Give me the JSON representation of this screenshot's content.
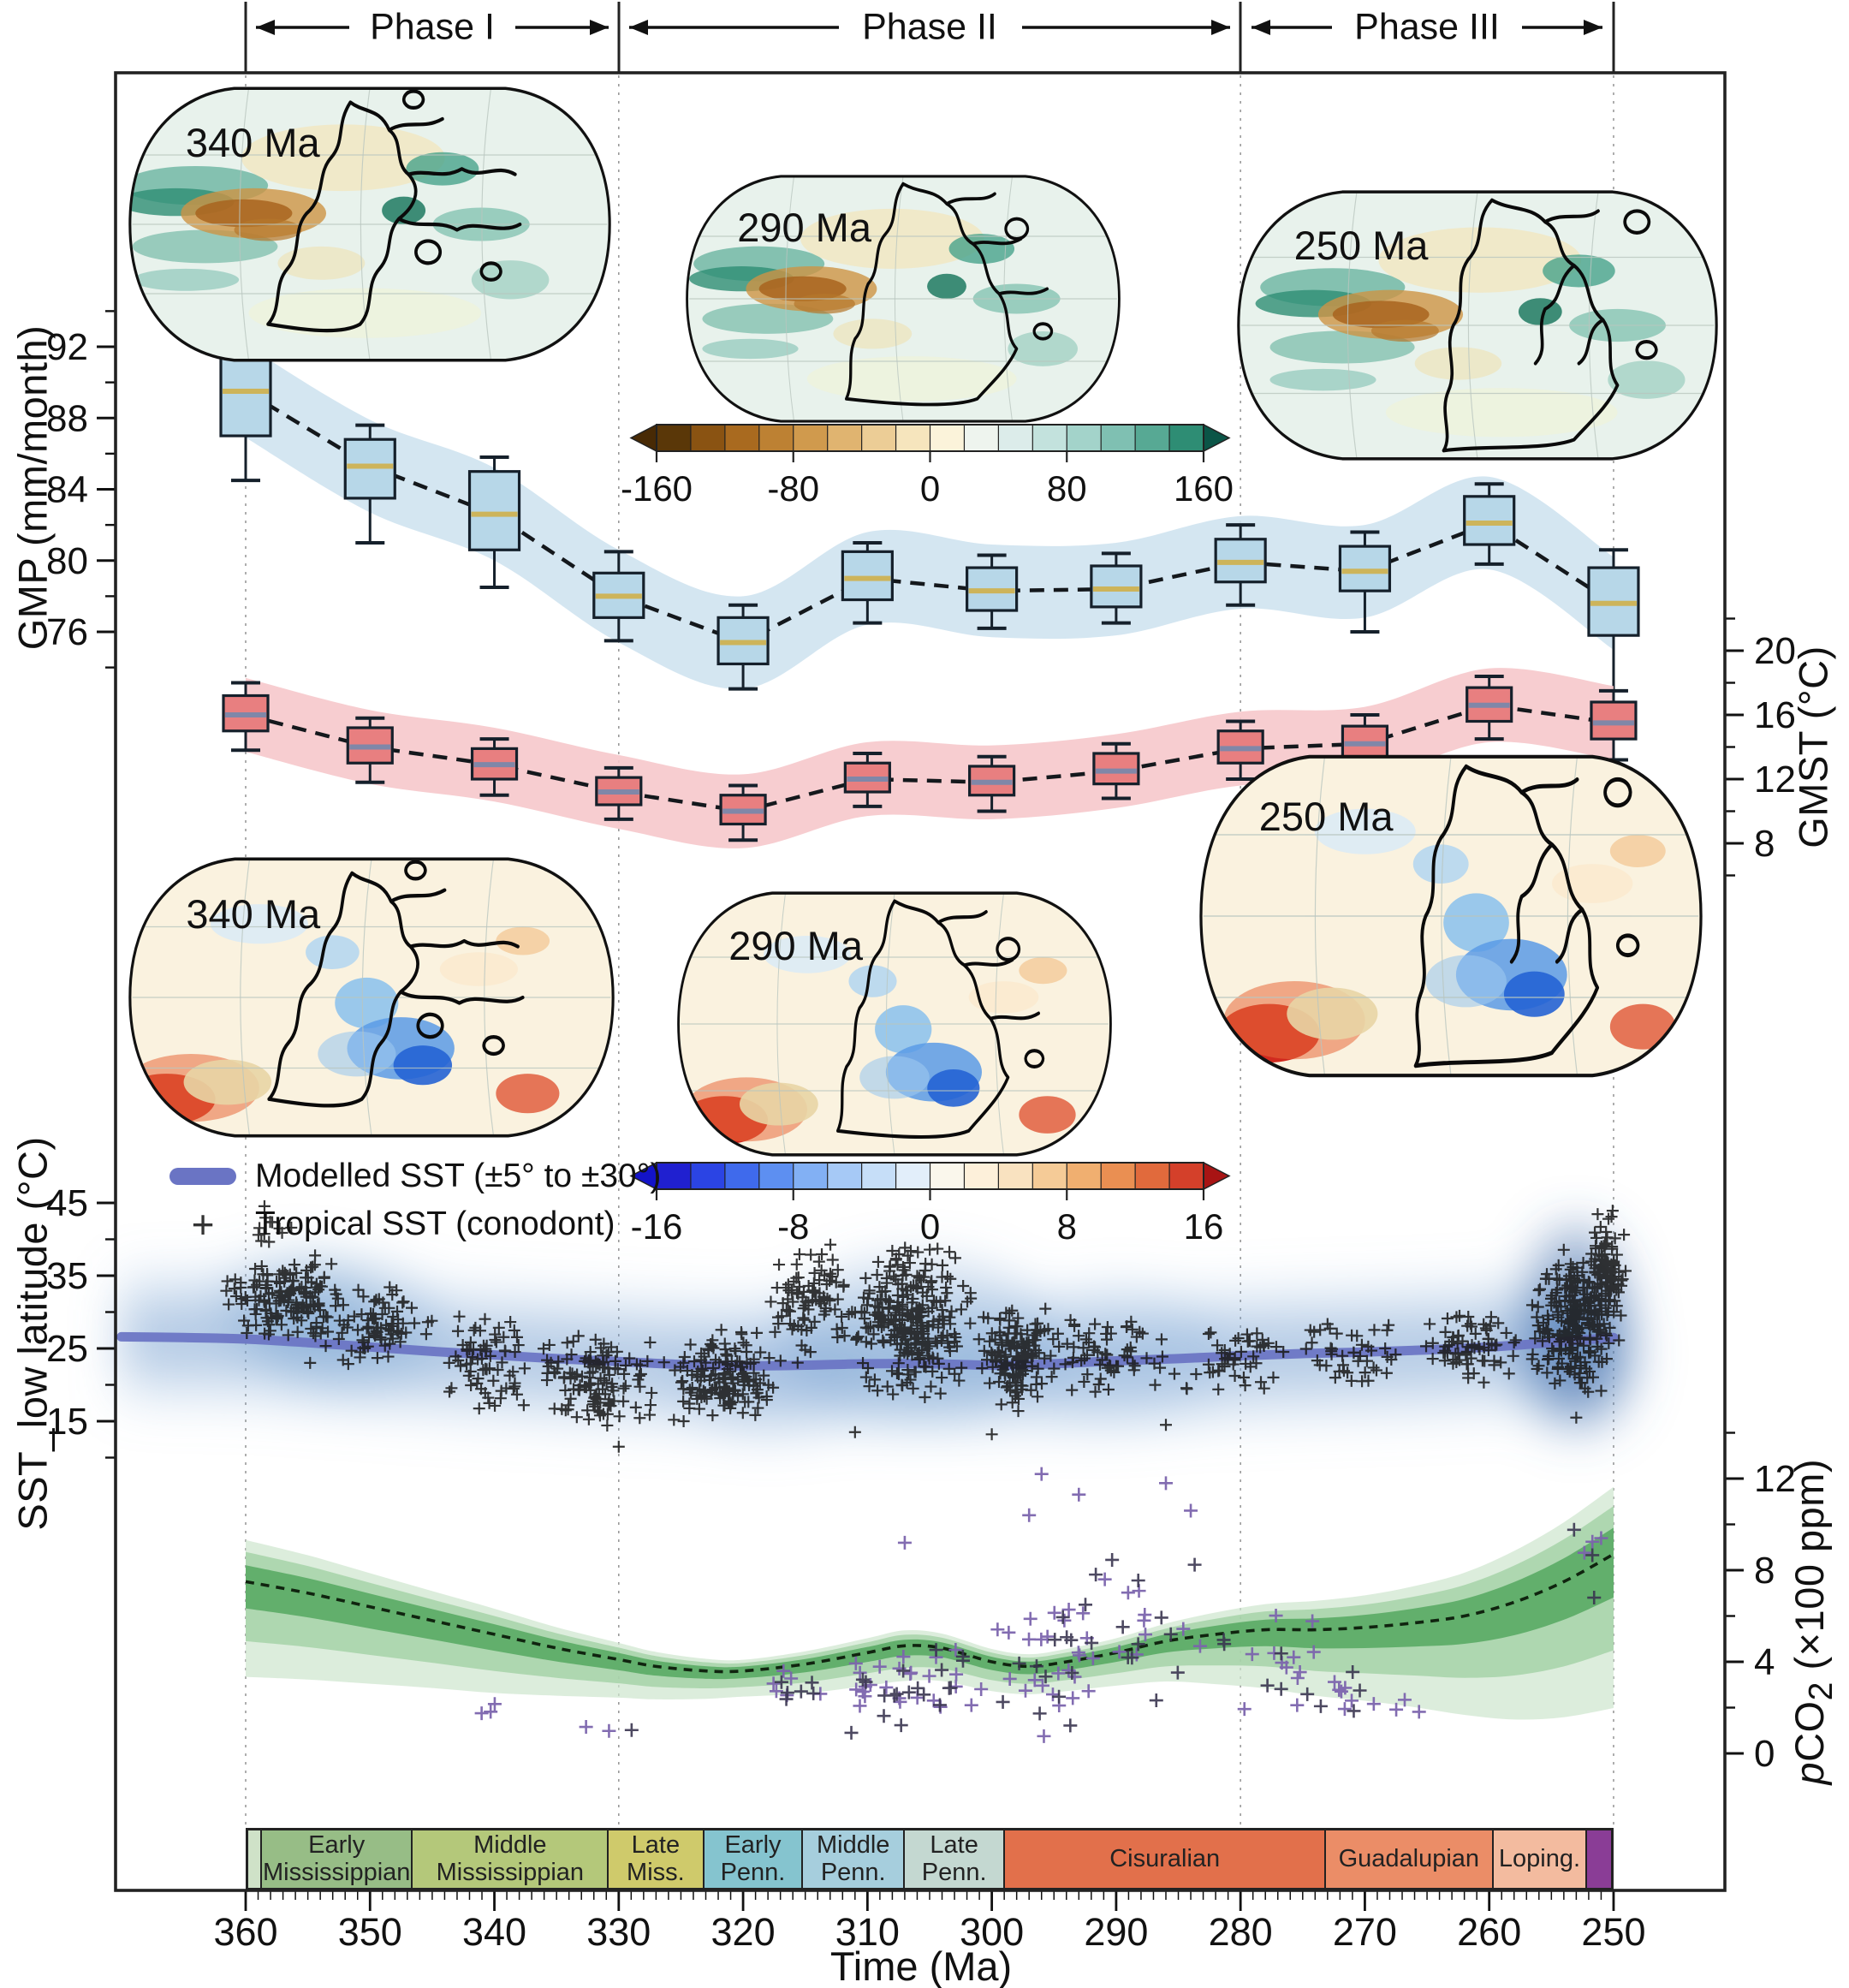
{
  "phases": {
    "labels": [
      "Phase I",
      "Phase II",
      "Phase III"
    ],
    "boundaries_ma": [
      360,
      330,
      280,
      250
    ]
  },
  "axes": {
    "gmp": {
      "title": "GMP (mm/month)",
      "ticks": [
        92,
        88,
        84,
        80,
        76
      ],
      "minor": [
        94,
        90,
        86,
        82,
        78,
        74
      ]
    },
    "gmst": {
      "title": "GMST (°C)",
      "ticks": [
        20,
        16,
        12,
        8
      ],
      "minor": [
        22,
        18,
        14,
        10,
        6
      ]
    },
    "sst": {
      "title": "SST_low latitude (°C)",
      "ticks": [
        45,
        35,
        25,
        15
      ],
      "minor": [
        40,
        30,
        20,
        10
      ]
    },
    "pco2": {
      "t_p": "p",
      "t_main": "CO",
      "t_sub": "2",
      "t_suffix": " (×100 ppm)",
      "ticks": [
        12,
        8,
        4,
        0
      ],
      "minor": [
        14,
        10,
        6,
        2
      ]
    },
    "time": {
      "title": "Time (Ma)",
      "ticks": [
        360,
        350,
        340,
        330,
        320,
        310,
        300,
        290,
        280,
        270,
        260,
        250
      ]
    }
  },
  "legend": {
    "modelled": "Modelled SST (±5° to ±30°)",
    "conodont": "Tropical SST (conodont)",
    "plus": "+"
  },
  "colorbars": {
    "precip": {
      "ticks": [
        "-160",
        "-80",
        "0",
        "80",
        "160"
      ],
      "colors": [
        "#5a3708",
        "#8a5312",
        "#a96a1f",
        "#bd8133",
        "#d09a4d",
        "#e0b470",
        "#eccd96",
        "#f6e5bd",
        "#fbf3da",
        "#eef4ee",
        "#dcecea",
        "#c3e2dd",
        "#a3d3ca",
        "#7fc0b2",
        "#57a994",
        "#2e8d74"
      ],
      "arrow_left": "#482a05",
      "arrow_right": "#0b5547"
    },
    "sst": {
      "ticks": [
        "-16",
        "-8",
        "0",
        "8",
        "16"
      ],
      "colors": [
        "#2020d0",
        "#2b44e4",
        "#3f6aec",
        "#5d8ff1",
        "#82b0f4",
        "#a6c9f6",
        "#c6def8",
        "#e2eefa",
        "#faf7ec",
        "#fdf0da",
        "#f9e2c0",
        "#f5cb97",
        "#f0af70",
        "#ea8f52",
        "#e16a3c",
        "#d4402a"
      ],
      "arrow_left": "#1313c8",
      "arrow_right": "#a81414"
    }
  },
  "maps": {
    "precip": [
      {
        "label": "340 Ma"
      },
      {
        "label": "290 Ma"
      },
      {
        "label": "250 Ma"
      }
    ],
    "sst": [
      {
        "label": "340 Ma"
      },
      {
        "label": "290 Ma"
      },
      {
        "label": "250 Ma"
      }
    ]
  },
  "timescale": [
    {
      "l1": "",
      "l2": "",
      "t0": 360.0,
      "t1": 358.9,
      "color": "#cfe2c8"
    },
    {
      "l1": "Early",
      "l2": "Mississippian",
      "t0": 358.9,
      "t1": 346.7,
      "color": "#97bd86"
    },
    {
      "l1": "Middle",
      "l2": "Mississippian",
      "t0": 346.7,
      "t1": 330.9,
      "color": "#b4c87a"
    },
    {
      "l1": "Late",
      "l2": "Miss.",
      "t0": 330.9,
      "t1": 323.2,
      "color": "#cfca6b"
    },
    {
      "l1": "Early",
      "l2": "Penn.",
      "t0": 323.2,
      "t1": 315.2,
      "color": "#85c4cf"
    },
    {
      "l1": "Middle",
      "l2": "Penn.",
      "t0": 315.2,
      "t1": 307.0,
      "color": "#a6cedd"
    },
    {
      "l1": "Late",
      "l2": "Penn.",
      "t0": 307.0,
      "t1": 298.9,
      "color": "#c4d8d1"
    },
    {
      "l1": "Cisuralian",
      "l2": "",
      "t0": 298.9,
      "t1": 273.0,
      "color": "#e2704b"
    },
    {
      "l1": "Guadalupian",
      "l2": "",
      "t0": 273.0,
      "t1": 259.5,
      "color": "#eb8d67"
    },
    {
      "l1": "Loping.",
      "l2": "",
      "t0": 259.5,
      "t1": 251.9,
      "color": "#f3bb9f"
    },
    {
      "l1": "",
      "l2": "",
      "t0": 251.9,
      "t1": 250.0,
      "color": "#8a3d96"
    }
  ],
  "chart_data": {
    "type": [
      "box",
      "line",
      "scatter",
      "area"
    ],
    "x_axis": {
      "label": "Time (Ma)",
      "range": [
        360,
        250
      ],
      "direction": "decreasing"
    },
    "gmp_boxes": {
      "ylabel": "GMP (mm/month)",
      "ylim": [
        73,
        94
      ],
      "categories_ma": [
        360,
        350,
        340,
        330,
        320,
        310,
        300,
        290,
        280,
        270,
        260,
        250
      ],
      "lo": [
        84.5,
        81.0,
        78.5,
        75.5,
        72.8,
        76.5,
        76.2,
        76.5,
        77.5,
        76.0,
        79.8,
        71.5
      ],
      "q1": [
        87.0,
        83.5,
        80.6,
        76.8,
        74.2,
        77.8,
        77.2,
        77.4,
        78.8,
        78.3,
        80.9,
        75.8
      ],
      "med": [
        89.5,
        85.3,
        82.6,
        78.0,
        75.4,
        79.0,
        78.3,
        78.4,
        79.9,
        79.4,
        82.1,
        77.6
      ],
      "q3": [
        91.7,
        86.8,
        85.0,
        79.3,
        76.8,
        80.5,
        79.6,
        79.7,
        81.2,
        80.8,
        83.6,
        79.6
      ],
      "hi": [
        93.2,
        87.6,
        85.8,
        80.5,
        77.5,
        81.0,
        80.3,
        80.4,
        82.0,
        81.6,
        84.3,
        80.6
      ],
      "band_halfwidth": 2.6,
      "box_color": "#b7d7e8",
      "band_color": "#cfe3ef",
      "median_color": "#cdb45a"
    },
    "gmst_boxes": {
      "ylabel": "GMST (°C)",
      "ylim": [
        6,
        22
      ],
      "categories_ma": [
        360,
        350,
        340,
        330,
        320,
        310,
        300,
        290,
        280,
        270,
        260,
        250
      ],
      "lo": [
        13.8,
        11.8,
        11.0,
        9.5,
        8.2,
        10.3,
        10.0,
        10.8,
        12.0,
        12.4,
        14.5,
        13.2
      ],
      "q1": [
        15.0,
        13.0,
        12.0,
        10.4,
        9.2,
        11.2,
        11.0,
        11.7,
        13.0,
        13.4,
        15.6,
        14.5
      ],
      "med": [
        16.0,
        14.0,
        12.9,
        11.2,
        10.0,
        12.0,
        11.8,
        12.5,
        13.9,
        14.2,
        16.6,
        15.5
      ],
      "q3": [
        17.2,
        15.2,
        13.9,
        12.1,
        11.0,
        13.0,
        12.8,
        13.6,
        15.0,
        15.3,
        17.7,
        16.8
      ],
      "hi": [
        18.0,
        15.8,
        14.5,
        12.7,
        11.6,
        13.6,
        13.4,
        14.2,
        15.6,
        16.0,
        18.4,
        17.5
      ],
      "band_halfwidth": 2.3,
      "box_color": "#e87f80",
      "band_color": "#f6c8cb",
      "median_color": "#8087a8"
    },
    "modelled_sst": {
      "ylabel": "SST_low latitude (°C)",
      "ylim": [
        8,
        48
      ],
      "color": "#6a74c4",
      "x_ma": [
        370,
        365,
        360,
        355,
        350,
        345,
        340,
        335,
        330,
        325,
        320,
        315,
        310,
        305,
        300,
        295,
        290,
        285,
        280,
        275,
        270,
        265,
        260,
        255,
        250
      ],
      "y_c": [
        26.6,
        26.5,
        26.3,
        25.8,
        25.2,
        24.6,
        24.1,
        23.6,
        23.2,
        22.8,
        22.6,
        22.7,
        22.9,
        22.9,
        22.7,
        22.9,
        23.3,
        23.6,
        24.0,
        24.3,
        24.5,
        24.8,
        25.2,
        25.8,
        26.5
      ]
    },
    "conodont_sst_clusters": [
      [
        362,
        352,
        26,
        38,
        150
      ],
      [
        361,
        356,
        38,
        45,
        12
      ],
      [
        356,
        344,
        22,
        34,
        90
      ],
      [
        344,
        337,
        16,
        30,
        70
      ],
      [
        337,
        326,
        14,
        27,
        130
      ],
      [
        326,
        317,
        14,
        28,
        150
      ],
      [
        318,
        311,
        22,
        40,
        90
      ],
      [
        312,
        301,
        17,
        40,
        280
      ],
      [
        301,
        295,
        16,
        31,
        140
      ],
      [
        296,
        285,
        18,
        31,
        70
      ],
      [
        285,
        276,
        18,
        28,
        50
      ],
      [
        276,
        266,
        19,
        29,
        45
      ],
      [
        266,
        257,
        20,
        31,
        70
      ],
      [
        257,
        249,
        18,
        40,
        240
      ],
      [
        252,
        249,
        26,
        44,
        90
      ]
    ],
    "conodont_singles": [
      [
        330,
        11.5
      ],
      [
        311,
        13.5
      ],
      [
        300,
        13.2
      ],
      [
        286,
        14.5
      ],
      [
        253,
        15.5
      ]
    ],
    "pco2_curve": {
      "ylabel": "pCO2 (×100 ppm)",
      "ylim": [
        0,
        14
      ],
      "color": "#173a1c",
      "x_ma": [
        360,
        355,
        350,
        345,
        340,
        335,
        330,
        327,
        323,
        320,
        315,
        310,
        307,
        304,
        300,
        297,
        294,
        290,
        286,
        282,
        278,
        274,
        270,
        266,
        262,
        258,
        254,
        250
      ],
      "y": [
        7.5,
        7.0,
        6.4,
        5.8,
        5.2,
        4.6,
        4.1,
        3.8,
        3.6,
        3.6,
        3.9,
        4.4,
        4.7,
        4.6,
        4.0,
        3.8,
        4.0,
        4.4,
        4.9,
        5.2,
        5.4,
        5.4,
        5.5,
        5.7,
        6.0,
        6.6,
        7.5,
        8.7
      ],
      "hw": [
        1.3,
        1.18,
        1.05,
        0.92,
        0.8,
        0.65,
        0.52,
        0.45,
        0.38,
        0.35,
        0.4,
        0.45,
        0.48,
        0.45,
        0.4,
        0.38,
        0.4,
        0.45,
        0.55,
        0.68,
        0.8,
        0.9,
        1.0,
        1.15,
        1.35,
        1.6,
        1.85,
        2.1
      ]
    },
    "pco2_proxy_clusters": [
      [
        342,
        338,
        1.2,
        2.4,
        3
      ],
      [
        334,
        328,
        0.8,
        1.8,
        3
      ],
      [
        321,
        312,
        1.5,
        4.5,
        12
      ],
      [
        312,
        300,
        0.6,
        5.5,
        45
      ],
      [
        300,
        290,
        0.6,
        8.0,
        40
      ],
      [
        292,
        282,
        1.5,
        9.0,
        22
      ],
      [
        282,
        270,
        1.0,
        6.5,
        22
      ],
      [
        274,
        268,
        1.8,
        3.4,
        6
      ],
      [
        254,
        251,
        6.0,
        10.0,
        5
      ],
      [
        270,
        262,
        1.5,
        2.5,
        4
      ]
    ],
    "pco2_outliers": [
      [
        296,
        12.2
      ],
      [
        293,
        11.3
      ],
      [
        297,
        10.4
      ],
      [
        286,
        11.8
      ],
      [
        284,
        10.6
      ],
      [
        307,
        9.2
      ],
      [
        251,
        9.4
      ]
    ]
  }
}
